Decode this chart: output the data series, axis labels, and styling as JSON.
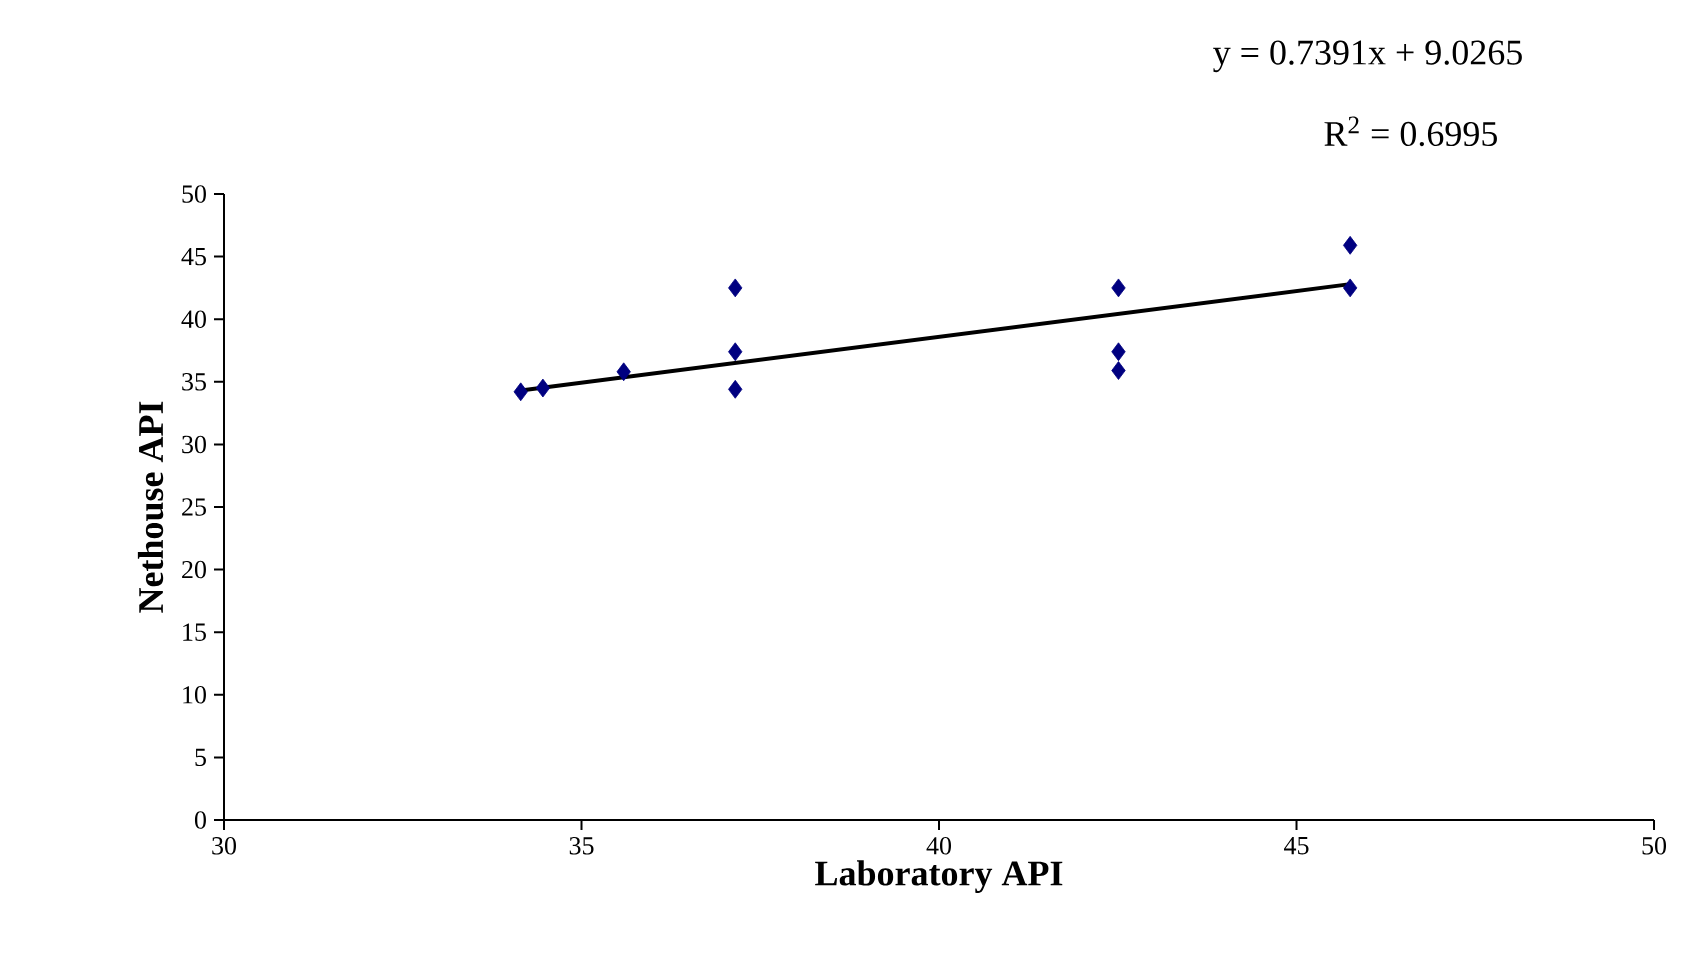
{
  "chart_data": {
    "type": "scatter",
    "xlabel": "Laboratory API",
    "ylabel": "Nethouse API",
    "annotations": [
      "y = 0.7391x + 9.0265",
      "R$^{2}$ = 0.6995"
    ],
    "xlim": [
      30,
      50
    ],
    "ylim": [
      0,
      50
    ],
    "xticks": [
      30,
      35,
      40,
      45,
      50
    ],
    "yticks": [
      0,
      5,
      10,
      15,
      20,
      25,
      30,
      35,
      40,
      45,
      50
    ],
    "series": [
      {
        "marker": "diamond",
        "color": "#000080",
        "x": [
          34.15,
          34.46,
          35.59,
          37.15,
          37.15,
          37.15,
          42.51,
          42.51,
          42.51,
          45.75,
          45.75
        ],
        "values": [
          34.2,
          34.5,
          35.8,
          42.5,
          37.4,
          34.4,
          42.5,
          37.4,
          35.9,
          45.9,
          42.5
        ]
      },
      {
        "type": "line",
        "marker": "none",
        "line_style": "solid",
        "color": "#000000",
        "x": [
          34.15,
          45.75
        ],
        "values": [
          34.3,
          42.8
        ]
      }
    ]
  }
}
